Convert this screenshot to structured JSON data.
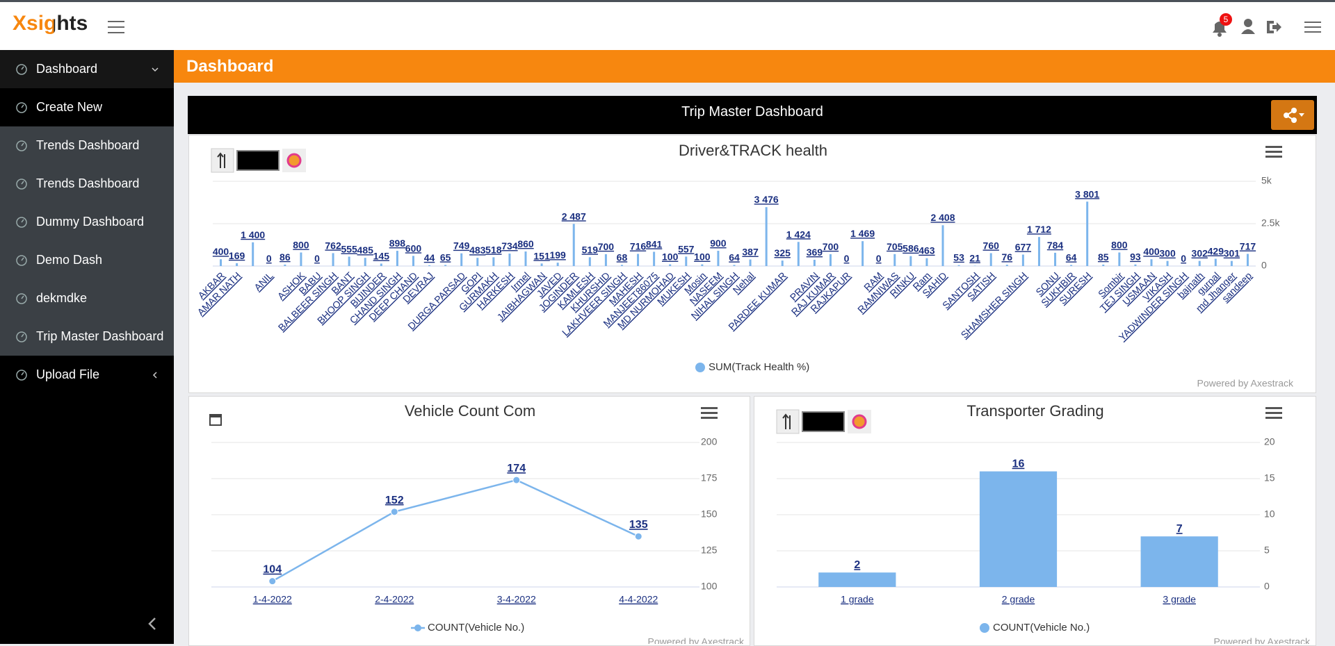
{
  "header": {
    "logo": "Xsights",
    "notification_count": 5
  },
  "sidebar": {
    "items": [
      "Dashboard",
      "Create New",
      "Trends Dashboard",
      "Trends Dashboard",
      "Dummy Dashboard",
      "Demo Dash",
      "dekmdke",
      "Trip Master Dashboard",
      "Upload File"
    ]
  },
  "page_title": "Dashboard",
  "dashboard_title": "Trip Master Dashboard",
  "chart_data": [
    {
      "type": "bar",
      "title": "Driver&TRACK health",
      "credits": "Powered by Axestrack",
      "categories": [
        "AKBAR",
        "AMAR NATH",
        null,
        "ANIL",
        null,
        "ASHOK",
        "BABU",
        "BALBEER SINGH",
        "BANT",
        "BHOOP SINGH",
        "BIJINDER",
        "CHAND SINGH",
        "DEEP CHAND",
        "DEVRAJ",
        null,
        "DURGA PARSAD",
        "GOPI",
        "GURMAKH",
        "HARKESH",
        "Irmel",
        "JAIBHAGWAN",
        "JAVED",
        "JOGINDER",
        "KAMLESH",
        "KHURSHID",
        "LAKHVEER SINGH",
        "MAHESH",
        "MANJEET86075",
        "MD NURMOHAD",
        "MUKESH",
        "Mosin",
        "NASEEM",
        "NIHAL SINGH",
        "Nehal",
        null,
        "PARDEE KUMAR",
        null,
        "PRAVIN",
        "RAJ KUMAR",
        "RAJKAPUR",
        null,
        "RAM",
        "RAMNIWAS",
        "RINKU",
        "Ram",
        "SAHID",
        null,
        "SANTOSH",
        "SATISH",
        null,
        "SHAMSHER SINGH",
        null,
        "SONU",
        "SUKHBIR",
        "SURESH",
        null,
        "Sombir",
        "TEJ SINGH",
        "USMAAN",
        "VIKASH",
        "YADWINDER SINGH",
        "bajnath",
        "gurpal",
        "md Jhanger",
        "sandeep"
      ],
      "series": [
        {
          "name": "SUM(Track Health %)",
          "color": "#7cb5ec",
          "values": [
            400,
            169,
            1400,
            0,
            86,
            800,
            0,
            762,
            555,
            485,
            145,
            898,
            600,
            44,
            65,
            749,
            483,
            518,
            734,
            860,
            151,
            199,
            2487,
            519,
            700,
            68,
            716,
            841,
            100,
            557,
            100,
            900,
            64,
            387,
            3476,
            325,
            1424,
            369,
            700,
            0,
            1469,
            0,
            705,
            586,
            463,
            2408,
            53,
            21,
            760,
            76,
            677,
            1712,
            784,
            64,
            3801,
            85,
            800,
            93,
            400,
            300,
            0,
            302,
            429,
            301,
            717
          ],
          "value_labels": [
            "400",
            "169",
            "1 400",
            "0",
            "86",
            "800",
            "0",
            "762",
            "555",
            "485",
            "145",
            "898",
            "600",
            "44",
            "65",
            "749",
            "483",
            "518",
            "734",
            "860",
            "151",
            "199",
            "2 487",
            "519",
            "700",
            "68",
            "716",
            "841",
            "100",
            "557",
            "100",
            "900",
            "64",
            "387",
            "3 476",
            "325",
            "1 424",
            "369",
            "700",
            "0",
            "1 469",
            "0",
            "705",
            "586",
            "463",
            "2 408",
            "53",
            "21",
            "760",
            "76",
            "677",
            "1 712",
            "784",
            "64",
            "3 801",
            "85",
            "800",
            "93",
            "400",
            "300",
            "0",
            "302",
            "429",
            "301",
            "717"
          ]
        }
      ],
      "ylim": [
        0,
        5000
      ],
      "yticks": [
        0,
        {
          "value": 2500,
          "label": "2.5k"
        },
        {
          "value": 5000,
          "label": "5k"
        }
      ],
      "grid": true
    },
    {
      "type": "line",
      "title": "Vehicle Count Com",
      "credits": "Powered by Axestrack",
      "categories": [
        "1-4-2022",
        "2-4-2022",
        "3-4-2022",
        "4-4-2022"
      ],
      "series": [
        {
          "name": "COUNT(Vehicle No.)",
          "color": "#7cb5ec",
          "values": [
            104,
            152,
            174,
            135
          ]
        }
      ],
      "ylim": [
        100,
        200
      ],
      "yticks": [
        100,
        125,
        150,
        175,
        200
      ],
      "grid": true
    },
    {
      "type": "bar",
      "title": "Transporter Grading",
      "credits": "Powered by Axestrack",
      "categories": [
        "1 grade",
        "2 grade",
        "3 grade"
      ],
      "series": [
        {
          "name": "COUNT(Vehicle No.)",
          "color": "#7cb5ec",
          "values": [
            2,
            16,
            7
          ]
        }
      ],
      "ylim": [
        0,
        20
      ],
      "yticks": [
        0,
        5,
        10,
        15,
        20
      ],
      "grid": true
    }
  ]
}
